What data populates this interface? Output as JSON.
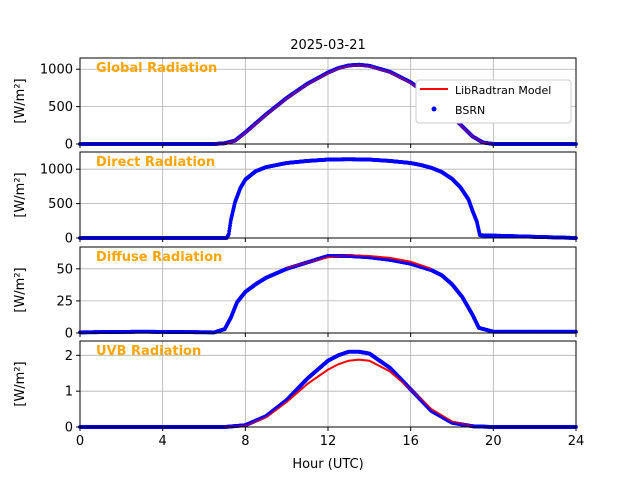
{
  "chart_data": [
    {
      "type": "line",
      "title": "2025-03-21",
      "label": "Global Radiation",
      "ylabel": "[W/m²]",
      "xlabel": "",
      "xlim": [
        0,
        24
      ],
      "ylim": [
        0,
        1150
      ],
      "yticks": [
        0,
        500,
        1000
      ],
      "xticks": [
        0,
        4,
        8,
        12,
        16,
        20,
        24
      ],
      "grid": true,
      "series": [
        {
          "name": "LibRadtran Model",
          "x": [
            6.5,
            7,
            7.5,
            8,
            8.5,
            9,
            10,
            11,
            12,
            12.5,
            13,
            13.5,
            14,
            15,
            16,
            17,
            17.5,
            18,
            18.5,
            19,
            19.5,
            20
          ],
          "y": [
            0,
            5,
            40,
            150,
            270,
            390,
            610,
            800,
            950,
            1010,
            1045,
            1055,
            1040,
            960,
            820,
            620,
            500,
            370,
            230,
            100,
            20,
            0
          ]
        },
        {
          "name": "BSRN",
          "x": [
            0,
            6.5,
            7,
            7.5,
            8,
            8.5,
            9,
            10,
            11,
            12,
            12.5,
            13,
            13.5,
            14,
            15,
            16,
            17,
            17.5,
            18,
            18.5,
            19,
            19.5,
            20,
            24
          ],
          "y": [
            0,
            0,
            10,
            45,
            155,
            275,
            395,
            615,
            805,
            955,
            1015,
            1050,
            1060,
            1045,
            965,
            825,
            625,
            505,
            375,
            235,
            100,
            20,
            0,
            0
          ]
        }
      ],
      "legend": {
        "position": "right",
        "entries": [
          "LibRadtran Model",
          "BSRN"
        ]
      }
    },
    {
      "type": "line",
      "label": "Direct Radiation",
      "ylabel": "[W/m²]",
      "xlim": [
        0,
        24
      ],
      "ylim": [
        0,
        1250
      ],
      "yticks": [
        0,
        500,
        1000
      ],
      "grid": true,
      "series": [
        {
          "name": "BSRN",
          "x": [
            0,
            7.1,
            7.2,
            7.3,
            7.5,
            7.75,
            8,
            8.5,
            9,
            10,
            11,
            12,
            13,
            14,
            15,
            16,
            16.5,
            17,
            17.5,
            18,
            18.4,
            18.8,
            19.0,
            19.2,
            19.35,
            24
          ],
          "y": [
            0,
            0,
            60,
            260,
            520,
            720,
            850,
            970,
            1030,
            1090,
            1120,
            1140,
            1145,
            1140,
            1120,
            1090,
            1060,
            1020,
            960,
            860,
            740,
            560,
            390,
            240,
            40,
            0
          ]
        }
      ]
    },
    {
      "type": "line",
      "label": "Diffuse Radiation",
      "ylabel": "[W/m²]",
      "xlim": [
        0,
        24
      ],
      "ylim": [
        0,
        67
      ],
      "yticks": [
        0,
        25,
        50
      ],
      "grid": true,
      "series": [
        {
          "name": "LibRadtran Model",
          "x": [
            10,
            11,
            12,
            13,
            14,
            15,
            16,
            17
          ],
          "y": [
            50.5,
            55,
            59,
            60.5,
            60,
            58.5,
            55.5,
            50
          ]
        },
        {
          "name": "BSRN",
          "x": [
            0,
            3,
            6.5,
            7,
            7.3,
            7.6,
            8,
            8.5,
            9,
            10,
            11,
            12,
            13,
            14,
            15,
            16,
            17,
            17.5,
            18,
            18.5,
            19,
            19.3,
            20,
            24
          ],
          "y": [
            0.5,
            1,
            0.5,
            3,
            12,
            24,
            32,
            38,
            43,
            50,
            55,
            60,
            60,
            59,
            57,
            54,
            49,
            45,
            38,
            28,
            14,
            4,
            1,
            1
          ]
        }
      ]
    },
    {
      "type": "line",
      "label": "UVB Radiation",
      "ylabel": "[W/m²]",
      "xlabel": "Hour (UTC)",
      "xlim": [
        0,
        24
      ],
      "ylim": [
        0,
        2.4
      ],
      "yticks": [
        0,
        1,
        2
      ],
      "xticks": [
        0,
        4,
        8,
        12,
        16,
        20,
        24
      ],
      "grid": true,
      "series": [
        {
          "name": "LibRadtran Model",
          "x": [
            7,
            8,
            9,
            10,
            11,
            12,
            12.5,
            13,
            13.5,
            14,
            15,
            16,
            17,
            18,
            19
          ],
          "y": [
            0,
            0.04,
            0.27,
            0.7,
            1.2,
            1.6,
            1.75,
            1.85,
            1.88,
            1.85,
            1.55,
            1.05,
            0.5,
            0.15,
            0.02
          ]
        },
        {
          "name": "BSRN",
          "x": [
            0,
            7,
            8,
            9,
            10,
            11,
            12,
            12.5,
            13,
            13.5,
            14,
            15,
            16,
            17,
            18,
            19,
            20,
            24
          ],
          "y": [
            0,
            0,
            0.05,
            0.3,
            0.75,
            1.35,
            1.85,
            2.0,
            2.1,
            2.1,
            2.05,
            1.65,
            1.05,
            0.45,
            0.12,
            0.02,
            0,
            0
          ]
        }
      ]
    }
  ],
  "colors": {
    "model": "#ff0000",
    "bsrn": "#0000ff",
    "panel_label": "#ffa500",
    "grid": "#b0b0b0"
  }
}
